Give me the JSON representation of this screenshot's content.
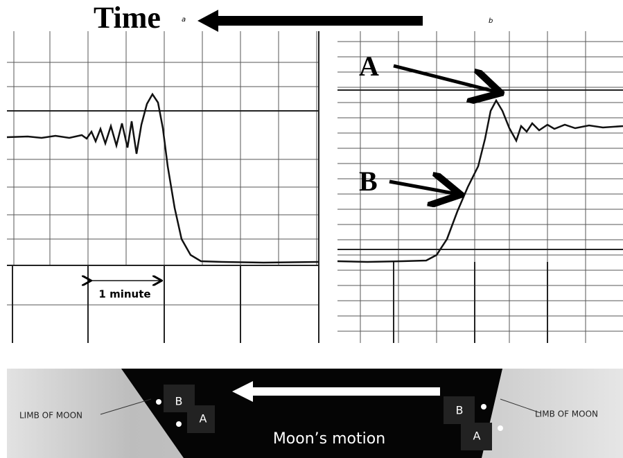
{
  "header": {
    "title": "Time"
  },
  "panels": [
    {
      "label": "a",
      "annotations": [
        "1 minute"
      ]
    },
    {
      "label": "b",
      "annotations": [
        "A",
        "B"
      ]
    }
  ],
  "occultation": {
    "limb_labels": [
      "LIMB OF MOON",
      "LIMB OF MOON"
    ],
    "left_stars": [
      "B",
      "A"
    ],
    "right_stars": [
      "B",
      "A"
    ],
    "caption": "Moon’s motion"
  }
}
